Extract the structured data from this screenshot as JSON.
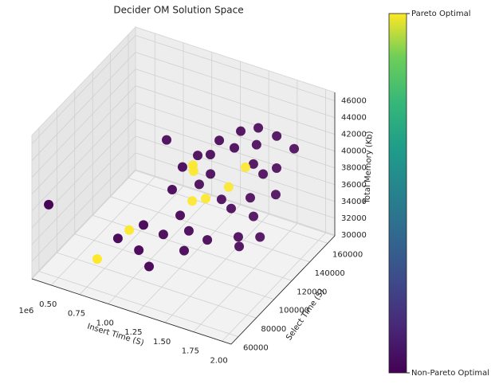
{
  "chart_data": {
    "type": "scatter3d",
    "title": "Decider OM Solution Space",
    "xlabel": "Insert Time (S)",
    "ylabel": "Select Time (S)",
    "zlabel": "Total Memory (Kb)",
    "x_offset_label": "1e6",
    "xlim": [
      0.33,
      2.08
    ],
    "ylim": [
      52000,
      168000
    ],
    "zlim": [
      29900,
      47000
    ],
    "xticks": [
      {
        "value": 0.5,
        "label": "0.50"
      },
      {
        "value": 0.75,
        "label": "0.75"
      },
      {
        "value": 1.0,
        "label": "1.00"
      },
      {
        "value": 1.25,
        "label": "1.25"
      },
      {
        "value": 1.5,
        "label": "1.50"
      },
      {
        "value": 1.75,
        "label": "1.75"
      },
      {
        "value": 2.0,
        "label": "2.00"
      }
    ],
    "yticks": [
      60000,
      80000,
      100000,
      120000,
      140000,
      160000
    ],
    "zticks": [
      30000,
      32000,
      34000,
      36000,
      38000,
      40000,
      42000,
      44000,
      46000
    ],
    "grid": true,
    "series": [
      {
        "color": "#440154",
        "cvalue": 0,
        "x": [
          0.381,
          0.986,
          0.829,
          0.953,
          1.083,
          1.005,
          1.107,
          1.189,
          1.212,
          1.216,
          1.345,
          1.11,
          1.174,
          1.245,
          1.209,
          1.384,
          1.49,
          1.517,
          1.613,
          1.618,
          1.667,
          1.762,
          1.788,
          1.895,
          1.363,
          1.443,
          1.545,
          1.552,
          1.695,
          1.49,
          1.636,
          1.525,
          1.315,
          1.581,
          1.324
        ],
        "y": [
          64300,
          119200,
          84700,
          92300,
          87200,
          90900,
          100100,
          108500,
          115300,
          109500,
          119000,
          109600,
          113000,
          121000,
          127300,
          127400,
          130800,
          134500,
          141900,
          139300,
          140400,
          143400,
          140200,
          146100,
          132600,
          133200,
          141600,
          144300,
          151000,
          135200,
          140900,
          131700,
          126400,
          140500,
          125100
        ],
        "z": [
          37600,
          41900,
          33300,
          31600,
          30800,
          35000,
          33300,
          35000,
          32500,
          30800,
          31600,
          37600,
          40200,
          41000,
          36700,
          42700,
          41900,
          43600,
          43600,
          41900,
          38500,
          39300,
          43600,
          41900,
          35000,
          34200,
          35000,
          32500,
          35000,
          30800,
          30800,
          30200,
          38500,
          39300,
          41000
        ]
      },
      {
        "color": "#fde725",
        "cvalue": 1,
        "x": [
          0.731,
          0.808,
          1.044,
          1.044,
          1.086,
          1.161,
          1.289,
          1.366
        ],
        "y": [
          74000,
          100000,
          141200,
          142000,
          135100,
          140600,
          150000,
          159100
        ],
        "z": [
          31600,
          32500,
          36700,
          35900,
          33300,
          33300,
          34200,
          35900
        ]
      }
    ],
    "colorbar": {
      "clim": [
        0,
        1
      ],
      "ticks": [
        {
          "value": 0,
          "label": "Non-Pareto Optimal"
        },
        {
          "value": 1,
          "label": "Pareto Optimal"
        }
      ]
    }
  }
}
